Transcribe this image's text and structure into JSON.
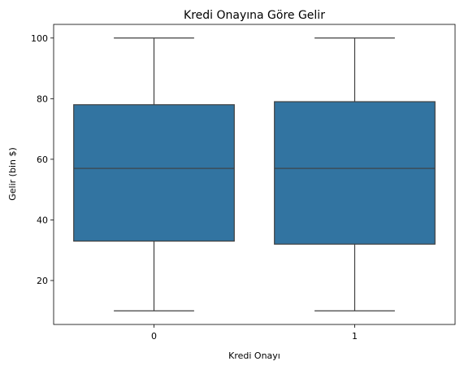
{
  "chart_data": {
    "type": "box",
    "title": "Kredi Onayına Göre Gelir",
    "xlabel": "Kredi Onayı",
    "ylabel": "Gelir (bin $)",
    "categories": [
      "0",
      "1"
    ],
    "boxes": [
      {
        "category": "0",
        "min": 10,
        "q1": 33,
        "median": 57,
        "q3": 78,
        "max": 100
      },
      {
        "category": "1",
        "min": 10,
        "q1": 32,
        "median": 57,
        "q3": 79,
        "max": 100
      }
    ],
    "yticks": [
      20,
      40,
      60,
      80,
      100
    ],
    "ylim": [
      5.5,
      104.5
    ],
    "grid": false,
    "box_color": "#3274a1",
    "line_color": "#3f3f3f"
  }
}
